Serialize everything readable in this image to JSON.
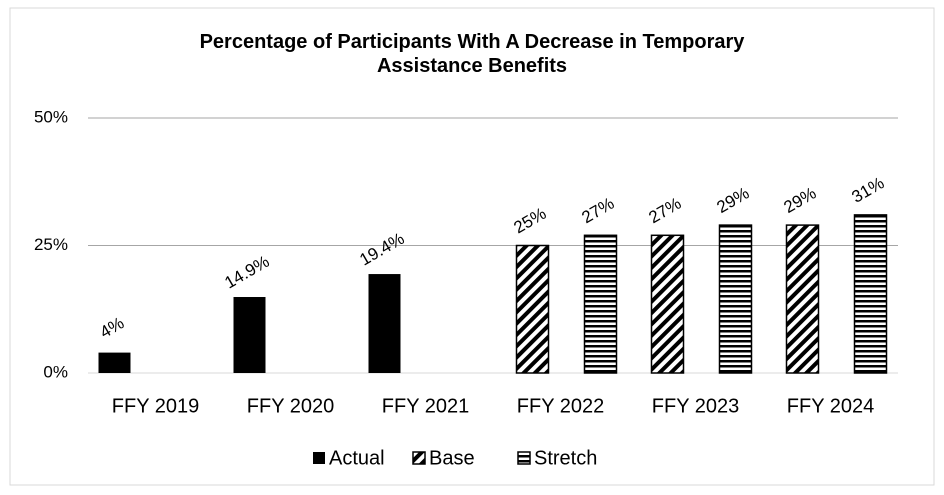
{
  "chart_data": {
    "type": "bar",
    "title": "Percentage of Participants With A Decrease in Temporary Assistance Benefits",
    "categories": [
      "FFY 2019",
      "FFY 2020",
      "FFY 2021",
      "FFY 2022",
      "FFY 2023",
      "FFY 2024"
    ],
    "series": [
      {
        "name": "Actual",
        "color": "#000000",
        "pattern": "solid",
        "values": [
          4,
          14.9,
          19.4,
          null,
          null,
          null
        ],
        "value_labels": [
          "4%",
          "14.9%",
          "19.4%",
          null,
          null,
          null
        ]
      },
      {
        "name": "Base",
        "color": "#000000",
        "pattern": "diagonal",
        "values": [
          null,
          null,
          null,
          25,
          27,
          29
        ],
        "value_labels": [
          null,
          null,
          null,
          "25%",
          "27%",
          "29%"
        ]
      },
      {
        "name": "Stretch",
        "color": "#000000",
        "pattern": "horizontal",
        "values": [
          null,
          null,
          null,
          27,
          29,
          31
        ],
        "value_labels": [
          null,
          null,
          null,
          "27%",
          "29%",
          "31%"
        ]
      }
    ],
    "ylim": [
      0,
      50
    ],
    "yticks": [
      {
        "value": 0,
        "label": "0%"
      },
      {
        "value": 25,
        "label": "25%"
      },
      {
        "value": 50,
        "label": "50%"
      }
    ],
    "grid": true,
    "legend": "bottom"
  }
}
